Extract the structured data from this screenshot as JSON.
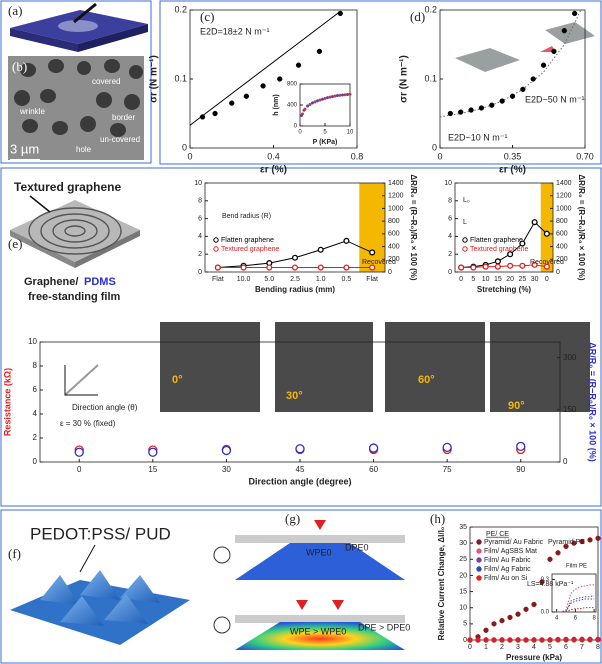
{
  "panels": {
    "labels": [
      "(a)",
      "(b)",
      "(c)",
      "(d)",
      "(e)",
      "(f)",
      "(g)",
      "(h)"
    ],
    "b_texts": [
      "covered",
      "wrinkle",
      "border",
      "un-covered",
      "hole",
      "3 µm"
    ],
    "e_texts": [
      "Textured graphene",
      "Graphene/",
      "PDMS",
      "free-standing film"
    ],
    "f_text": "PEDOT:PSS/ PUD",
    "g_texts": [
      "WPE0",
      "DPE0",
      "WPE > WPE0",
      "DPE > DPE0"
    ]
  },
  "chart_data": [
    {
      "type": "scatter",
      "annotations": [
        "E2D=18±2 N m⁻¹"
      ],
      "xlabel": "εr (%)",
      "ylabel": "σr (N m⁻¹)",
      "xlim": [
        0,
        0.8
      ],
      "xticks": [
        0,
        0.4,
        0.8
      ],
      "ylim": [
        0,
        0.2
      ],
      "yticks": [
        0,
        0.1,
        0.2
      ],
      "marker": "filled",
      "series": [
        {
          "color": "#000000",
          "x": [
            0.06,
            0.12,
            0.2,
            0.27,
            0.35,
            0.43,
            0.52,
            0.62,
            0.72
          ],
          "values": [
            0.045,
            0.05,
            0.065,
            0.075,
            0.09,
            0.1,
            0.12,
            0.14,
            0.195
          ]
        }
      ],
      "fit": {
        "color": "#000000",
        "x": [
          0,
          0.72
        ],
        "values": [
          0.033,
          0.198
        ]
      }
    },
    {
      "type": "scatter",
      "xlabel": "P (KPa)",
      "ylabel": "h (nm)",
      "xlim": [
        0,
        10
      ],
      "xticks": [
        0,
        5,
        10
      ],
      "ylim": [
        0,
        800
      ],
      "yticks": [
        0,
        400,
        800
      ],
      "marker": "filled",
      "series": [
        {
          "color": "#2b4fd8",
          "x": [
            0.3,
            0.8,
            1.5,
            2.5,
            3.5,
            4.5,
            5.5,
            6.5,
            7.5,
            8.5,
            9.5
          ],
          "values": [
            200,
            300,
            380,
            440,
            480,
            510,
            540,
            560,
            580,
            590,
            600
          ]
        },
        {
          "color": "#e03030",
          "x": [
            0.5,
            1,
            2,
            3,
            4,
            5,
            6,
            7,
            8,
            9,
            10
          ],
          "values": [
            230,
            320,
            410,
            460,
            495,
            525,
            550,
            570,
            585,
            595,
            605
          ]
        }
      ]
    },
    {
      "type": "scatter",
      "annotations": [
        "E2D~50 N m⁻¹",
        "E2D~10 N m⁻¹"
      ],
      "xlabel": "εr (%)",
      "ylabel": "σr (N m⁻¹)",
      "xlim": [
        0,
        0.7
      ],
      "xticks": [
        0,
        0.35,
        {
          "value": 0.7,
          "label": "0.70"
        }
      ],
      "ylim": [
        0,
        0.2
      ],
      "yticks": [
        0,
        0.1,
        0.2
      ],
      "marker": "filled",
      "series": [
        {
          "color": "#000000",
          "x": [
            0.05,
            0.1,
            0.15,
            0.2,
            0.25,
            0.3,
            0.35,
            0.4,
            0.45,
            0.5,
            0.55,
            0.6,
            0.65
          ],
          "values": [
            0.05,
            0.052,
            0.055,
            0.058,
            0.062,
            0.068,
            0.075,
            0.085,
            0.1,
            0.12,
            0.14,
            0.17,
            0.195
          ]
        }
      ],
      "fit": {
        "color": "#666666",
        "style": "dotted",
        "x": [
          0,
          0.1,
          0.2,
          0.3,
          0.4,
          0.5,
          0.6,
          0.68
        ],
        "values": [
          0.045,
          0.05,
          0.057,
          0.068,
          0.085,
          0.11,
          0.15,
          0.2
        ]
      }
    },
    {
      "type": "line",
      "categories": [
        "Flat",
        "10.0",
        "5.0",
        "2.5",
        "1.0",
        "0.5",
        "Flat"
      ],
      "xlabel": "Bending radius (mm)",
      "ylim": [
        0,
        10
      ],
      "yticks": [
        0,
        2,
        4,
        6,
        8,
        10
      ],
      "y2lim": [
        0,
        1400
      ],
      "y2ticks": [
        0,
        200,
        400,
        600,
        800,
        1000,
        1200,
        1400
      ],
      "y2label": "ΔR/R₀ = (R−R₀)/R₀ × 100 (%)",
      "highlight_color": "#f5b800",
      "marker": "open",
      "annotations": [
        "Bend radius (R)",
        "Recovered"
      ],
      "series": [
        {
          "name": "Flatten graphene",
          "color": "#000000",
          "values": [
            0.5,
            0.7,
            1.0,
            1.6,
            2.5,
            3.5,
            2.2
          ]
        },
        {
          "name": "Textured graphene",
          "color": "#e02020",
          "values": [
            0.5,
            0.5,
            0.5,
            0.5,
            0.5,
            0.5,
            0.5
          ]
        }
      ]
    },
    {
      "type": "line",
      "categories": [
        "0",
        "5",
        "10",
        "15",
        "20",
        "25",
        "30",
        "0"
      ],
      "xlabel": "Stretching (%)",
      "ylim": [
        0,
        10
      ],
      "yticks": [
        0,
        2,
        4,
        6,
        8,
        10
      ],
      "y2lim": [
        0,
        1400
      ],
      "y2ticks": [
        0,
        200,
        400,
        600,
        800,
        1000,
        1200,
        1400
      ],
      "y2label": "ΔR/R₀ = (R−R₀)/R₀ × 100 (%)",
      "highlight_color": "#f5b800",
      "marker": "open",
      "annotations": [
        "Recovered",
        "L₀",
        "L"
      ],
      "series": [
        {
          "name": "Flatten graphene",
          "color": "#000000",
          "values": [
            0.5,
            0.6,
            0.8,
            1.2,
            2.0,
            3.2,
            5.6,
            4.3
          ]
        },
        {
          "name": "Textured graphene",
          "color": "#e02020",
          "values": [
            0.5,
            0.5,
            0.6,
            0.6,
            0.7,
            0.7,
            0.8,
            0.6
          ]
        }
      ]
    },
    {
      "type": "scatter",
      "xlabel": "Direction angle (degree)",
      "ylabel": "Resistance (kΩ)",
      "ylabel_color": "#e02020",
      "y2label": "ΔR/R₀ = (R−R₀)/R₀ × 100 (%)",
      "y2label_color": "#2b2bd8",
      "xlim": [
        -8,
        98
      ],
      "xticks": [
        0,
        15,
        30,
        45,
        60,
        75,
        90
      ],
      "ylim": [
        0,
        10
      ],
      "yticks": [
        0,
        2,
        4,
        6,
        8,
        10
      ],
      "y2lim": [
        0,
        345
      ],
      "y2ticks": [
        0,
        150,
        300
      ],
      "marker": "open",
      "annotations": [
        "Direction angle (θ)",
        "ε = 30 % (fixed)",
        "0°",
        "30°",
        "60°",
        "90°"
      ],
      "series": [
        {
          "color": "#e02020",
          "x": [
            0,
            15,
            30,
            45,
            60,
            75,
            90
          ],
          "values": [
            1.0,
            1.0,
            1.05,
            1.05,
            1.05,
            1.05,
            1.05
          ]
        },
        {
          "color": "#2b2bd8",
          "axis": "y2",
          "x": [
            0,
            15,
            30,
            45,
            60,
            75,
            90
          ],
          "values": [
            28,
            28,
            33,
            38,
            40,
            42,
            45
          ]
        }
      ]
    },
    {
      "type": "scatter",
      "xlabel": "Pressure (kPa)",
      "ylabel": "Relative Current Change, ΔI/I₀",
      "xlim": [
        0,
        8
      ],
      "xticks": [
        0,
        1,
        2,
        3,
        4,
        5,
        6,
        7,
        8
      ],
      "ylim": [
        0,
        35
      ],
      "yticks": [
        0,
        5,
        10,
        15,
        20,
        25,
        30,
        35
      ],
      "marker": "filled",
      "legend_title": "PE/ CE",
      "legend": "upper left",
      "annotations": [
        "Pyramid PE",
        "LS=4.88 kPa⁻¹"
      ],
      "x": [
        0,
        0.5,
        1,
        1.5,
        2,
        2.5,
        3,
        3.5,
        4,
        4.5,
        5,
        5.5,
        6,
        6.5,
        7,
        7.5,
        8
      ],
      "series": [
        {
          "name": "Pyramid/ Au Fabric",
          "color": "#8b1a1a",
          "values": [
            0,
            1,
            3,
            5,
            6,
            7,
            8,
            9.5,
            11,
            18,
            25,
            27,
            29,
            30,
            30.5,
            31,
            31.5
          ]
        },
        {
          "name": "Film/ AgSBS Mat",
          "color": "#e75480",
          "values": [
            0,
            0,
            0,
            0,
            0,
            0,
            0,
            0,
            0,
            0,
            0.02,
            0.17,
            0.21,
            0.23,
            0.24,
            0.25,
            0.25
          ]
        },
        {
          "name": "Film/ Au Fabric",
          "color": "#7b3fa0",
          "values": [
            0,
            0,
            0,
            0,
            0,
            0,
            0,
            0,
            0,
            0,
            0,
            0.1,
            0.12,
            0.13,
            0.14,
            0.14,
            0.15
          ]
        },
        {
          "name": "Film/ Ag Fabric",
          "color": "#1f4fb4",
          "values": [
            0,
            0,
            0,
            0,
            0,
            0,
            0,
            0,
            0,
            0,
            0.01,
            0.08,
            0.1,
            0.11,
            0.12,
            0.12,
            0.12
          ]
        },
        {
          "name": "Film/ Au on Si",
          "color": "#e02020",
          "values": [
            0,
            0,
            0,
            0,
            0,
            0,
            0,
            0,
            0,
            0,
            0,
            0.02,
            0.03,
            0.03,
            0.04,
            0.04,
            0.04
          ]
        }
      ]
    },
    {
      "type": "line",
      "xlim": [
        3.5,
        8.2
      ],
      "xticks": [
        4,
        6,
        8
      ],
      "ylim": [
        0,
        0.35
      ],
      "yticks": [
        {
          "value": 0,
          "label": "0.0"
        },
        0.3
      ],
      "annotations": [
        "Film PE"
      ],
      "x": [
        4,
        4.5,
        5,
        5.5,
        6,
        6.5,
        7,
        7.5,
        8
      ],
      "series": [
        {
          "color": "#e75480",
          "style": "dotted",
          "values": [
            0,
            0,
            0.02,
            0.17,
            0.21,
            0.23,
            0.24,
            0.25,
            0.25
          ]
        },
        {
          "color": "#7b3fa0",
          "style": "dotted",
          "values": [
            0,
            0,
            0,
            0.1,
            0.12,
            0.13,
            0.14,
            0.14,
            0.15
          ]
        },
        {
          "color": "#1f4fb4",
          "style": "dotted",
          "values": [
            0,
            0,
            0.01,
            0.08,
            0.1,
            0.11,
            0.12,
            0.12,
            0.12
          ]
        },
        {
          "color": "#e02020",
          "style": "dotted",
          "values": [
            0,
            0,
            0,
            0.02,
            0.03,
            0.03,
            0.04,
            0.04,
            0.04
          ]
        }
      ]
    }
  ]
}
